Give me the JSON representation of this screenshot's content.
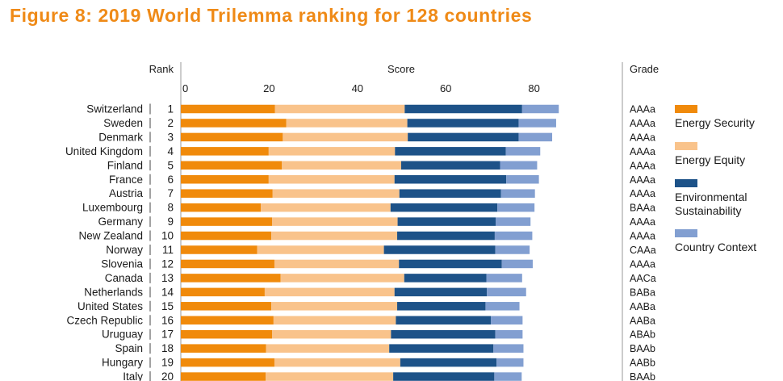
{
  "figure_title": "Figure 8: 2019 World Trilemma ranking for 128 countries",
  "headers": {
    "rank": "Rank",
    "score": "Score",
    "grade": "Grade"
  },
  "colors": {
    "energy_security": "#f08a0b",
    "energy_equity": "#f9c38b",
    "environmental_sustainability": "#1d5288",
    "country_context": "#829fd1",
    "title": "#ef8a17"
  },
  "chart_data": {
    "type": "bar",
    "orientation": "horizontal",
    "stacked": true,
    "title": "Figure 8: 2019 World Trilemma ranking for 128 countries",
    "xlabel": "Score",
    "xlim": [
      0,
      85
    ],
    "xticks": [
      0,
      20,
      40,
      60,
      80
    ],
    "grid": false,
    "legend_position": "right",
    "categories": [
      "Switzerland",
      "Sweden",
      "Denmark",
      "United Kingdom",
      "Finland",
      "France",
      "Austria",
      "Luxembourg",
      "Germany",
      "New Zealand",
      "Norway",
      "Slovenia",
      "Canada",
      "Netherlands",
      "United States",
      "Czech Republic",
      "Uruguay",
      "Spain",
      "Hungary",
      "Italy"
    ],
    "ranks": [
      "1",
      "2",
      "3",
      "4",
      "5",
      "6",
      "7",
      "8",
      "9",
      "10",
      "11",
      "12",
      "13",
      "14",
      "15",
      "16",
      "17",
      "18",
      "19",
      "20"
    ],
    "grades": [
      "AAAa",
      "AAAa",
      "AAAa",
      "AAAa",
      "AAAa",
      "AAAa",
      "AAAa",
      "BAAa",
      "AAAa",
      "AAAa",
      "CAAa",
      "AAAa",
      "AACa",
      "BABa",
      "AABa",
      "AABa",
      "ABAb",
      "BAAb",
      "AABb",
      "BAAb"
    ],
    "series": [
      {
        "name": "Energy Security",
        "color": "#f08a0b",
        "values": [
          21.3,
          23.9,
          23.1,
          19.9,
          22.9,
          19.9,
          20.8,
          18.1,
          20.7,
          20.5,
          17.3,
          21.2,
          22.6,
          19.0,
          20.5,
          21.0,
          20.7,
          19.3,
          21.2,
          19.2
        ]
      },
      {
        "name": "Energy Equity",
        "color": "#f9c38b",
        "values": [
          29.4,
          27.4,
          28.3,
          28.6,
          27.0,
          28.5,
          28.7,
          29.4,
          28.4,
          28.5,
          28.7,
          28.2,
          28.0,
          29.4,
          28.5,
          27.7,
          26.9,
          27.9,
          28.5,
          28.9
        ]
      },
      {
        "name": "Environmental Sustainability",
        "color": "#1d5288",
        "values": [
          26.6,
          25.2,
          25.1,
          25.1,
          22.4,
          25.3,
          23.0,
          24.2,
          22.2,
          22.1,
          25.2,
          23.3,
          18.6,
          20.9,
          20.0,
          21.5,
          23.6,
          23.6,
          21.8,
          22.9
        ]
      },
      {
        "name": "Country Context",
        "color": "#829fd1",
        "values": [
          8.3,
          8.5,
          7.6,
          7.8,
          8.4,
          7.4,
          7.7,
          8.4,
          7.9,
          8.5,
          7.8,
          7.0,
          8.1,
          8.9,
          7.7,
          7.2,
          6.2,
          6.8,
          6.1,
          6.2
        ]
      }
    ]
  }
}
